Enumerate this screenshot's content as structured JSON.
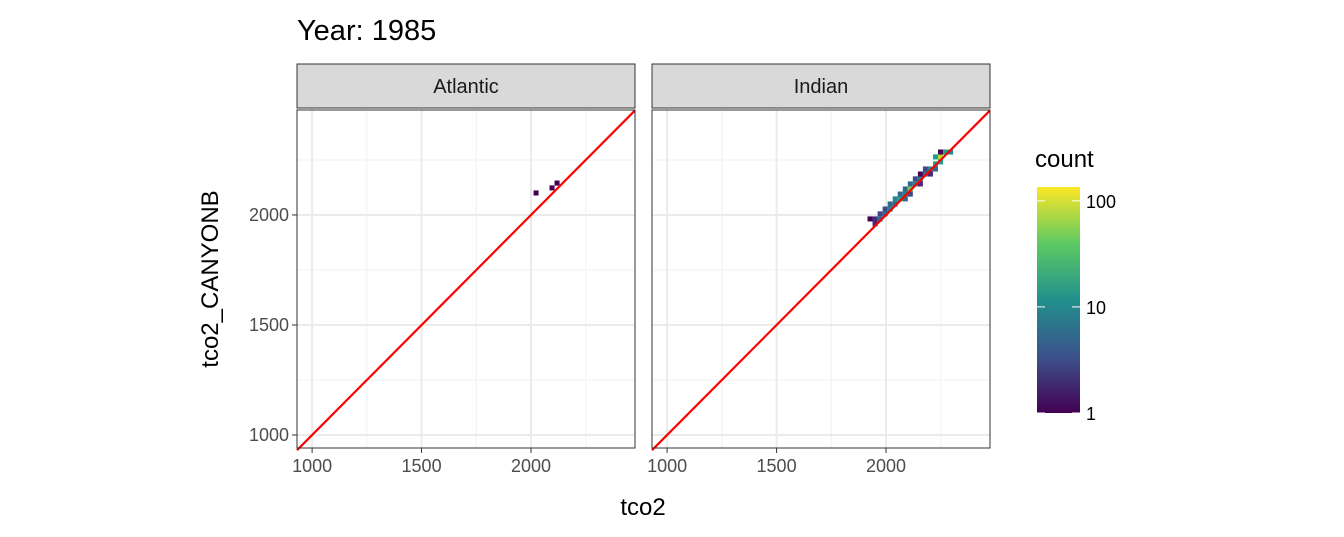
{
  "chart_data": {
    "type": "heatmap",
    "title": "Year: 1985",
    "xlabel": "tco2",
    "ylabel": "tco2_CANYONB",
    "xlim": [
      931,
      2475
    ],
    "ylim": [
      941,
      2477
    ],
    "x_ticks": [
      1000,
      1500,
      2000
    ],
    "y_ticks": [
      1000,
      1500,
      2000
    ],
    "bin_width": 23,
    "reference_line": {
      "slope": 1,
      "intercept": 0,
      "color": "#ff0000"
    },
    "grid": true,
    "legend": {
      "title": "count",
      "scale": "log10",
      "range": [
        1,
        135
      ],
      "ticks": [
        "1",
        "10",
        "100"
      ],
      "position": "right",
      "palette": "viridis"
    },
    "facets": [
      {
        "label": "Atlantic",
        "bins": [
          [
            2023,
            2100,
            1
          ],
          [
            2096,
            2123,
            1
          ],
          [
            2119,
            2145,
            1
          ]
        ]
      },
      {
        "label": "Indian",
        "bins": [
          [
            1927,
            1982,
            1
          ],
          [
            1950,
            1982,
            2
          ],
          [
            1950,
            1960,
            2
          ],
          [
            1973,
            2005,
            3
          ],
          [
            1973,
            1982,
            4
          ],
          [
            1996,
            2027,
            3
          ],
          [
            1996,
            2005,
            6
          ],
          [
            2019,
            2027,
            8
          ],
          [
            2019,
            2050,
            4
          ],
          [
            2042,
            2050,
            6
          ],
          [
            2042,
            2073,
            8
          ],
          [
            2065,
            2073,
            12
          ],
          [
            2065,
            2095,
            4
          ],
          [
            2088,
            2095,
            10
          ],
          [
            2088,
            2118,
            6
          ],
          [
            2088,
            2073,
            5
          ],
          [
            2111,
            2118,
            40
          ],
          [
            2111,
            2141,
            5
          ],
          [
            2111,
            2095,
            3
          ],
          [
            2134,
            2141,
            8
          ],
          [
            2134,
            2164,
            3
          ],
          [
            2157,
            2164,
            10
          ],
          [
            2157,
            2186,
            1
          ],
          [
            2157,
            2141,
            2
          ],
          [
            2180,
            2186,
            6
          ],
          [
            2180,
            2209,
            3
          ],
          [
            2203,
            2209,
            8
          ],
          [
            2203,
            2186,
            2
          ],
          [
            2226,
            2232,
            12
          ],
          [
            2226,
            2209,
            4
          ],
          [
            2249,
            2264,
            100
          ],
          [
            2249,
            2241,
            15
          ],
          [
            2226,
            2264,
            12
          ],
          [
            2249,
            2286,
            1
          ],
          [
            2272,
            2286,
            20
          ],
          [
            2295,
            2286,
            8
          ]
        ]
      }
    ]
  }
}
